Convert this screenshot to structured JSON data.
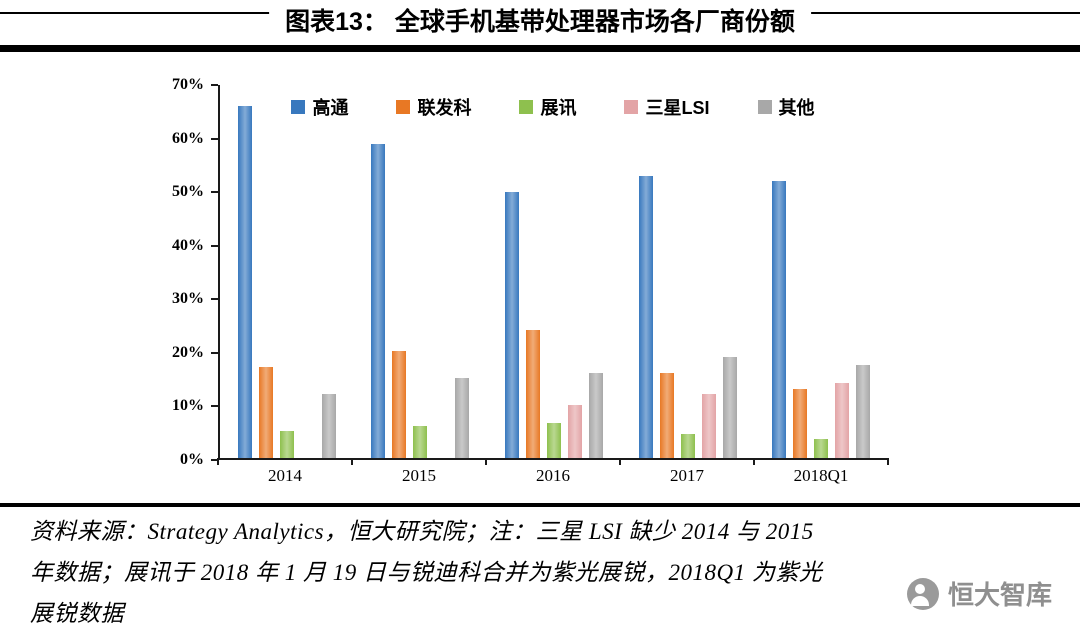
{
  "header": {
    "title": "图表13： 全球手机基带处理器市场各厂商份额"
  },
  "chart_data": {
    "type": "bar",
    "title": "全球手机基带处理器市场各厂商份额",
    "categories": [
      "2014",
      "2015",
      "2016",
      "2017",
      "2018Q1"
    ],
    "series": [
      {
        "key": "qualcomm",
        "name": "高通",
        "color": "#3878BE",
        "values": [
          66,
          59,
          50,
          53,
          52
        ]
      },
      {
        "key": "mediatek",
        "name": "联发科",
        "color": "#E87824",
        "values": [
          17,
          20,
          24,
          16,
          13
        ]
      },
      {
        "key": "spreadtrum",
        "name": "展讯",
        "color": "#8EC04E",
        "values": [
          5,
          6,
          6.5,
          4.5,
          3.5
        ]
      },
      {
        "key": "samsung-lsi",
        "name": "三星LSI",
        "color": "#E3A4A6",
        "values": [
          null,
          null,
          10,
          12,
          14
        ]
      },
      {
        "key": "others",
        "name": "其他",
        "color": "#A8A8A8",
        "values": [
          12,
          15,
          16,
          19,
          17.5
        ]
      }
    ],
    "ylim": [
      0,
      70
    ],
    "ytick_step": 10,
    "ytick_suffix": "%",
    "xlabel": "",
    "ylabel": "",
    "grid": false,
    "legend_position": "top-inside"
  },
  "footer": {
    "lines": [
      "资料来源：Strategy Analytics，恒大研究院；注：三星 LSI 缺少 2014 与 2015",
      "年数据；展讯于 2018 年 1 月 19 日与锐迪科合并为紫光展锐，2018Q1 为紫光",
      "展锐数据"
    ],
    "watermark": "恒大智库"
  }
}
